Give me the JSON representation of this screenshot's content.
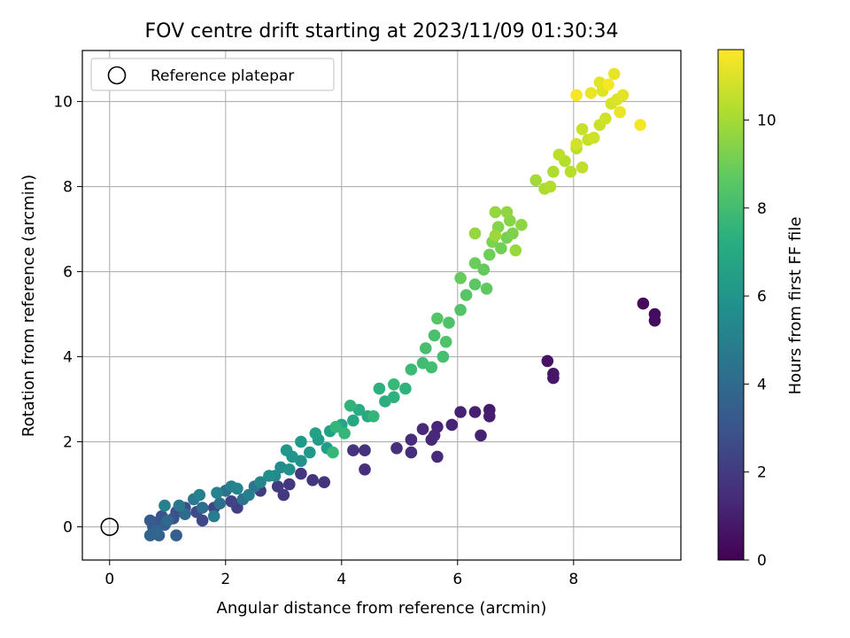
{
  "chart_data": {
    "type": "scatter",
    "title": "FOV centre drift starting at 2023/11/09 01:30:34",
    "xlabel": "Angular distance from reference (arcmin)",
    "ylabel": "Rotation from reference (arcmin)",
    "colorbar_label": "Hours from first FF file",
    "colormap": "viridis",
    "xlim": [
      -0.47,
      9.85
    ],
    "ylim": [
      -0.78,
      11.2
    ],
    "clim": [
      0,
      11.6
    ],
    "xticks": [
      "0",
      "2",
      "4",
      "6",
      "8"
    ],
    "yticks": [
      "0",
      "2",
      "4",
      "6",
      "8",
      "10"
    ],
    "cticks": [
      "0",
      "2",
      "4",
      "6",
      "8",
      "10"
    ],
    "grid": true,
    "legend": {
      "position": "top-left",
      "label": "Reference platepar"
    },
    "reference_point": {
      "x": 0,
      "y": 0
    },
    "series": [
      {
        "marker": "filled-circle",
        "columns": [
          "x",
          "y",
          "hours"
        ],
        "points": [
          [
            9.2,
            5.25,
            0.3
          ],
          [
            9.4,
            5.0,
            0.35
          ],
          [
            9.4,
            4.85,
            0.4
          ],
          [
            7.55,
            3.9,
            0.6
          ],
          [
            7.65,
            3.6,
            0.65
          ],
          [
            7.65,
            3.5,
            0.7
          ],
          [
            6.55,
            2.75,
            0.9
          ],
          [
            6.55,
            2.6,
            0.95
          ],
          [
            6.3,
            2.7,
            1.0
          ],
          [
            6.4,
            2.15,
            1.05
          ],
          [
            6.05,
            2.7,
            1.1
          ],
          [
            5.9,
            2.4,
            1.15
          ],
          [
            5.65,
            2.35,
            1.2
          ],
          [
            5.55,
            2.05,
            1.25
          ],
          [
            5.6,
            2.15,
            1.3
          ],
          [
            5.4,
            2.3,
            1.35
          ],
          [
            5.65,
            1.65,
            1.4
          ],
          [
            5.2,
            2.05,
            1.45
          ],
          [
            5.2,
            1.75,
            1.5
          ],
          [
            4.95,
            1.85,
            1.55
          ],
          [
            4.4,
            1.35,
            1.6
          ],
          [
            4.4,
            1.8,
            1.65
          ],
          [
            4.2,
            1.8,
            1.7
          ],
          [
            3.7,
            1.05,
            1.75
          ],
          [
            3.5,
            1.1,
            1.8
          ],
          [
            3.3,
            1.25,
            1.85
          ],
          [
            3.1,
            1.0,
            1.9
          ],
          [
            3.0,
            0.75,
            1.95
          ],
          [
            2.9,
            0.95,
            2.0
          ],
          [
            2.6,
            0.85,
            2.1
          ],
          [
            2.2,
            0.45,
            2.2
          ],
          [
            2.1,
            0.6,
            2.3
          ],
          [
            1.8,
            0.45,
            2.4
          ],
          [
            1.6,
            0.15,
            2.5
          ],
          [
            1.5,
            0.35,
            2.6
          ],
          [
            1.3,
            0.45,
            2.7
          ],
          [
            1.15,
            0.35,
            2.8
          ],
          [
            1.1,
            0.2,
            2.9
          ],
          [
            0.9,
            0.25,
            3.0
          ],
          [
            0.8,
            0.1,
            3.1
          ],
          [
            0.75,
            0.0,
            3.2
          ],
          [
            0.7,
            0.15,
            3.3
          ],
          [
            0.95,
            0.05,
            3.4
          ],
          [
            1.15,
            -0.2,
            3.5
          ],
          [
            0.85,
            -0.2,
            3.6
          ],
          [
            0.7,
            -0.2,
            3.7
          ],
          [
            0.8,
            -0.1,
            3.8
          ],
          [
            1.0,
            0.15,
            3.9
          ],
          [
            1.3,
            0.3,
            4.0
          ],
          [
            1.6,
            0.45,
            4.1
          ],
          [
            1.9,
            0.55,
            4.2
          ],
          [
            2.0,
            0.85,
            4.3
          ],
          [
            2.3,
            0.65,
            4.4
          ],
          [
            2.5,
            0.95,
            4.5
          ],
          [
            1.2,
            0.5,
            4.6
          ],
          [
            1.45,
            0.65,
            4.7
          ],
          [
            1.8,
            0.25,
            4.8
          ],
          [
            2.1,
            0.95,
            4.9
          ],
          [
            2.4,
            0.75,
            5.0
          ],
          [
            0.95,
            0.5,
            5.05
          ],
          [
            1.55,
            0.75,
            5.1
          ],
          [
            1.85,
            0.8,
            5.2
          ],
          [
            2.2,
            0.9,
            5.3
          ],
          [
            2.6,
            1.05,
            5.4
          ],
          [
            2.85,
            1.2,
            5.5
          ],
          [
            2.95,
            1.4,
            5.6
          ],
          [
            2.75,
            1.2,
            5.7
          ],
          [
            3.1,
            1.35,
            5.8
          ],
          [
            3.3,
            1.55,
            5.9
          ],
          [
            3.15,
            1.65,
            6.0
          ],
          [
            3.05,
            1.8,
            6.1
          ],
          [
            3.45,
            1.75,
            6.2
          ],
          [
            3.3,
            2.0,
            6.3
          ],
          [
            3.6,
            2.05,
            6.4
          ],
          [
            3.75,
            1.85,
            6.5
          ],
          [
            3.55,
            2.2,
            6.6
          ],
          [
            3.8,
            2.25,
            6.7
          ],
          [
            4.0,
            2.4,
            6.8
          ],
          [
            4.2,
            2.5,
            6.9
          ],
          [
            4.45,
            2.6,
            7.0
          ],
          [
            4.3,
            2.75,
            7.1
          ],
          [
            4.75,
            2.95,
            7.2
          ],
          [
            4.65,
            3.25,
            7.3
          ],
          [
            4.9,
            3.05,
            7.4
          ],
          [
            5.1,
            3.25,
            7.5
          ],
          [
            4.15,
            2.85,
            7.55
          ],
          [
            4.55,
            2.6,
            7.6
          ],
          [
            3.9,
            2.35,
            7.65
          ],
          [
            4.05,
            2.2,
            7.7
          ],
          [
            3.85,
            1.75,
            7.75
          ],
          [
            4.9,
            3.35,
            7.8
          ],
          [
            5.2,
            3.7,
            7.9
          ],
          [
            5.4,
            3.85,
            8.0
          ],
          [
            5.55,
            3.75,
            8.05
          ],
          [
            5.75,
            4.0,
            8.1
          ],
          [
            5.45,
            4.2,
            8.15
          ],
          [
            5.6,
            4.5,
            8.2
          ],
          [
            5.85,
            4.8,
            8.3
          ],
          [
            5.8,
            4.35,
            8.35
          ],
          [
            6.05,
            5.1,
            8.4
          ],
          [
            5.65,
            4.9,
            8.45
          ],
          [
            6.15,
            5.45,
            8.5
          ],
          [
            6.3,
            5.7,
            8.6
          ],
          [
            6.5,
            5.6,
            8.7
          ],
          [
            6.45,
            6.05,
            8.8
          ],
          [
            6.05,
            5.85,
            8.85
          ],
          [
            6.3,
            6.2,
            8.9
          ],
          [
            6.55,
            6.4,
            9.0
          ],
          [
            6.75,
            6.55,
            9.1
          ],
          [
            6.85,
            6.8,
            9.2
          ],
          [
            6.6,
            6.7,
            9.25
          ],
          [
            6.95,
            6.9,
            9.3
          ],
          [
            6.7,
            7.05,
            9.4
          ],
          [
            6.9,
            7.2,
            9.5
          ],
          [
            7.1,
            7.1,
            9.6
          ],
          [
            6.85,
            7.4,
            9.65
          ],
          [
            6.65,
            7.4,
            9.7
          ],
          [
            6.3,
            6.9,
            9.75
          ],
          [
            7.0,
            6.5,
            9.8
          ],
          [
            6.65,
            6.85,
            9.85
          ],
          [
            7.35,
            8.15,
            10.0
          ],
          [
            7.5,
            7.95,
            10.1
          ],
          [
            7.65,
            8.35,
            10.2
          ],
          [
            7.6,
            8.0,
            10.25
          ],
          [
            7.85,
            8.6,
            10.3
          ],
          [
            7.95,
            8.35,
            10.35
          ],
          [
            8.05,
            8.9,
            10.4
          ],
          [
            7.75,
            8.75,
            10.45
          ],
          [
            8.15,
            8.45,
            10.5
          ],
          [
            8.25,
            9.1,
            10.6
          ],
          [
            8.15,
            9.35,
            10.65
          ],
          [
            8.45,
            9.45,
            10.7
          ],
          [
            8.35,
            9.15,
            10.75
          ],
          [
            8.55,
            9.6,
            10.8
          ],
          [
            8.05,
            9.0,
            10.85
          ],
          [
            8.65,
            9.95,
            10.9
          ],
          [
            8.75,
            10.05,
            11.0
          ],
          [
            8.5,
            10.25,
            11.05
          ],
          [
            8.45,
            10.45,
            11.1
          ],
          [
            8.85,
            10.15,
            11.15
          ],
          [
            8.7,
            10.65,
            11.2
          ],
          [
            8.3,
            10.2,
            11.25
          ],
          [
            8.8,
            9.75,
            11.3
          ],
          [
            9.15,
            9.45,
            11.4
          ],
          [
            8.6,
            10.4,
            11.45
          ],
          [
            8.05,
            10.15,
            11.5
          ]
        ]
      }
    ]
  }
}
